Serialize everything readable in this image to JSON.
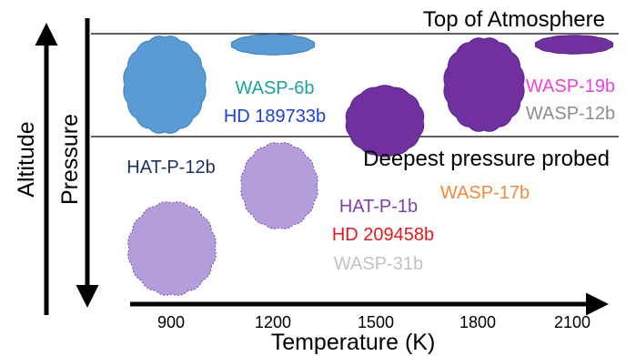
{
  "labels": {
    "top_of_atmosphere": "Top of Atmosphere",
    "deepest_pressure": "Deepest pressure probed",
    "altitude": "Altitude",
    "pressure": "Pressure",
    "temperature": "Temperature (K)"
  },
  "ticks": [
    "900",
    "1200",
    "1500",
    "1800",
    "2100"
  ],
  "planets": [
    {
      "name": "WASP-6b",
      "color": "#1aa39a"
    },
    {
      "name": "HD 189733b",
      "color": "#1c3fd6"
    },
    {
      "name": "WASP-19b",
      "color": "#f23fe0"
    },
    {
      "name": "WASP-12b",
      "color": "#8c8c8c"
    },
    {
      "name": "HAT-P-12b",
      "color": "#1f2f5e"
    },
    {
      "name": "HAT-P-1b",
      "color": "#7c3fb0"
    },
    {
      "name": "WASP-17b",
      "color": "#ef8a3a"
    },
    {
      "name": "HD 209458b",
      "color": "#e31b1b"
    },
    {
      "name": "WASP-31b",
      "color": "#c2c2c2"
    }
  ],
  "colors": {
    "blue_cloud": "#5a9bd5",
    "blue_cloud_edge": "#3d7fbd",
    "dark_purple_cloud": "#7030a0",
    "dark_purple_edge": "#5a2388",
    "light_purple_cloud": "#b39ddb",
    "light_purple_edge": "#7c3fb0"
  }
}
